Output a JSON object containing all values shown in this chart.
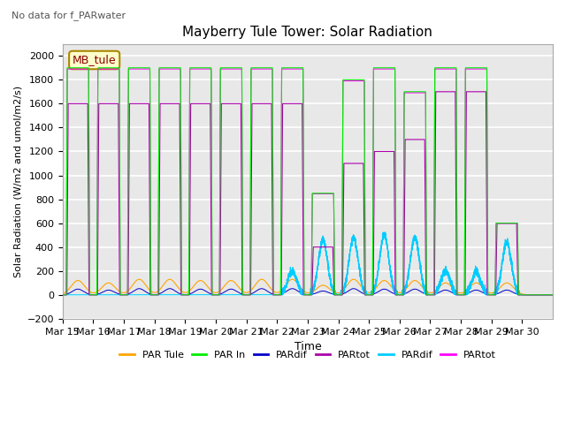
{
  "title": "Mayberry Tule Tower: Solar Radiation",
  "ylabel": "Solar Radiation (W/m2 and umol/m2/s)",
  "xlabel": "Time",
  "note": "No data for f_PARwater",
  "legend_label": "MB_tule",
  "ylim": [
    -200,
    2100
  ],
  "yticks": [
    -200,
    0,
    200,
    400,
    600,
    800,
    1000,
    1200,
    1400,
    1600,
    1800,
    2000
  ],
  "x_labels": [
    "Mar 15",
    "Mar 16",
    "Mar 17",
    "Mar 18",
    "Mar 19",
    "Mar 20",
    "Mar 21",
    "Mar 22",
    "Mar 23",
    "Mar 24",
    "Mar 25",
    "Mar 26",
    "Mar 27",
    "Mar 28",
    "Mar 29",
    "Mar 30"
  ],
  "num_days": 16,
  "series": [
    {
      "name": "PAR Tule",
      "color": "#FFA500"
    },
    {
      "name": "PAR In",
      "color": "#00EE00"
    },
    {
      "name": "PARdif",
      "color": "#0000CC"
    },
    {
      "name": "PARtot",
      "color": "#AA00AA"
    },
    {
      "name": "PARdif",
      "color": "#00CCFF"
    },
    {
      "name": "PARtot",
      "color": "#FF00FF"
    }
  ],
  "background_color": "#e8e8e8",
  "grid_color": "#ffffff",
  "par_in_peaks": [
    1900,
    1900,
    1900,
    1900,
    1900,
    1900,
    1900,
    1900,
    850,
    1800,
    1900,
    1700,
    1900,
    1900,
    600,
    0
  ],
  "par_in_peaks2": [
    1600,
    1600,
    1600,
    1600,
    1600,
    1600,
    1600,
    1600,
    400,
    1100,
    1200,
    1300,
    1700,
    1700,
    600,
    0
  ],
  "par_tule_peaks": [
    120,
    100,
    130,
    130,
    120,
    120,
    130,
    130,
    80,
    130,
    120,
    120,
    100,
    100,
    100,
    0
  ],
  "cyan_peaks": [
    0,
    0,
    0,
    0,
    0,
    0,
    0,
    200,
    460,
    480,
    500,
    480,
    200,
    180,
    440,
    0
  ],
  "cyan_peaks2": [
    0,
    0,
    0,
    0,
    0,
    0,
    0,
    150,
    380,
    320,
    200,
    300,
    180,
    200,
    200,
    0
  ]
}
